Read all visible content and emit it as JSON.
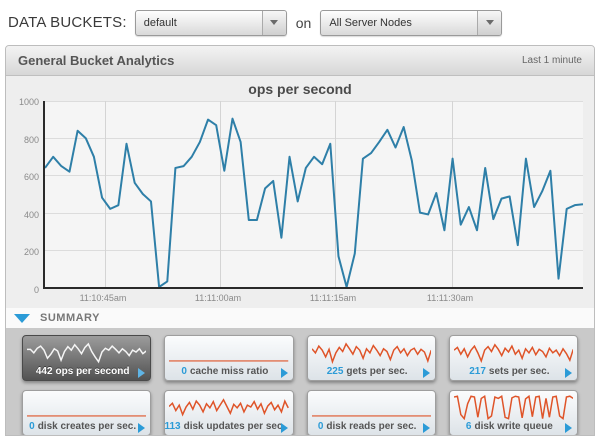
{
  "topbar": {
    "label": "DATA BUCKETS:",
    "bucket_select": {
      "value": "default"
    },
    "conjunction": "on",
    "nodes_select": {
      "value": "All Server Nodes"
    }
  },
  "panel": {
    "title": "General Bucket Analytics",
    "time_range": "Last 1 minute"
  },
  "chart": {
    "type": "line",
    "title": "ops per second",
    "y_ticks": [
      "1000",
      "800",
      "600",
      "400",
      "200",
      "0"
    ],
    "x_labels": [
      "11:10:45am",
      "11:11:00am",
      "11:11:15am",
      "11:11:30am"
    ],
    "ylim": [
      0,
      1000
    ],
    "values": [
      640,
      700,
      650,
      620,
      840,
      800,
      700,
      480,
      420,
      440,
      770,
      560,
      500,
      460,
      0,
      30,
      640,
      650,
      700,
      780,
      900,
      870,
      625,
      905,
      780,
      360,
      360,
      530,
      570,
      265,
      700,
      460,
      640,
      700,
      660,
      770,
      165,
      0,
      180,
      690,
      720,
      780,
      845,
      750,
      860,
      680,
      400,
      390,
      505,
      305,
      690,
      335,
      430,
      305,
      640,
      365,
      475,
      487,
      225,
      690,
      430,
      515,
      625,
      45,
      420,
      440,
      445
    ]
  },
  "summary": {
    "label": "SUMMARY"
  },
  "tiles": [
    {
      "value": "442",
      "label": "ops per second",
      "spark": [
        58,
        58,
        45,
        62,
        70,
        55,
        25,
        40,
        60,
        52,
        18,
        50,
        68,
        55,
        75,
        60,
        42,
        65,
        78,
        50,
        30,
        12,
        48,
        62,
        55,
        70,
        58,
        45,
        60,
        50,
        35,
        55,
        48,
        60,
        42,
        52
      ]
    },
    {
      "value": "0",
      "label": "cache miss ratio",
      "spark": [
        15,
        15
      ]
    },
    {
      "value": "225",
      "label": "gets per sec.",
      "spark": [
        60,
        45,
        70,
        55,
        30,
        58,
        12,
        45,
        65,
        50,
        78,
        60,
        40,
        68,
        55,
        25,
        60,
        45,
        72,
        55,
        35,
        60,
        50,
        20,
        55,
        68,
        45,
        60,
        35,
        55,
        62,
        40,
        58,
        48,
        15,
        55
      ]
    },
    {
      "value": "217",
      "label": "sets per sec.",
      "spark": [
        55,
        65,
        40,
        60,
        30,
        55,
        70,
        45,
        15,
        55,
        68,
        50,
        75,
        58,
        35,
        62,
        48,
        70,
        40,
        55,
        25,
        60,
        45,
        65,
        38,
        58,
        50,
        30,
        62,
        45,
        55,
        35,
        60,
        42,
        18,
        58
      ]
    },
    {
      "value": "0",
      "label": "disk creates per sec.",
      "spark": [
        15,
        15
      ]
    },
    {
      "value": "113",
      "label": "disk updates per sec.",
      "spark": [
        50,
        62,
        35,
        55,
        20,
        48,
        65,
        40,
        70,
        55,
        30,
        60,
        45,
        68,
        35,
        55,
        75,
        50,
        25,
        58,
        45,
        62,
        30,
        55,
        48,
        68,
        40,
        60,
        25,
        52,
        65,
        38,
        55,
        30,
        70,
        45
      ]
    },
    {
      "value": "0",
      "label": "disk reads per sec.",
      "spark": [
        15,
        15
      ]
    },
    {
      "value": "6",
      "label": "disk write queue",
      "spark": [
        85,
        88,
        20,
        5,
        60,
        88,
        85,
        10,
        80,
        88,
        5,
        15,
        85,
        80,
        88,
        10,
        5,
        82,
        88,
        85,
        8,
        78,
        88,
        12,
        85,
        88,
        5,
        80,
        10,
        85,
        88,
        15,
        5,
        85,
        88,
        80
      ]
    }
  ],
  "colors": {
    "chart_line": "#2e7fa8",
    "spark_orange": "#df5429",
    "white": "#f5f5f5",
    "accent_blue": "#2b9bd7"
  }
}
